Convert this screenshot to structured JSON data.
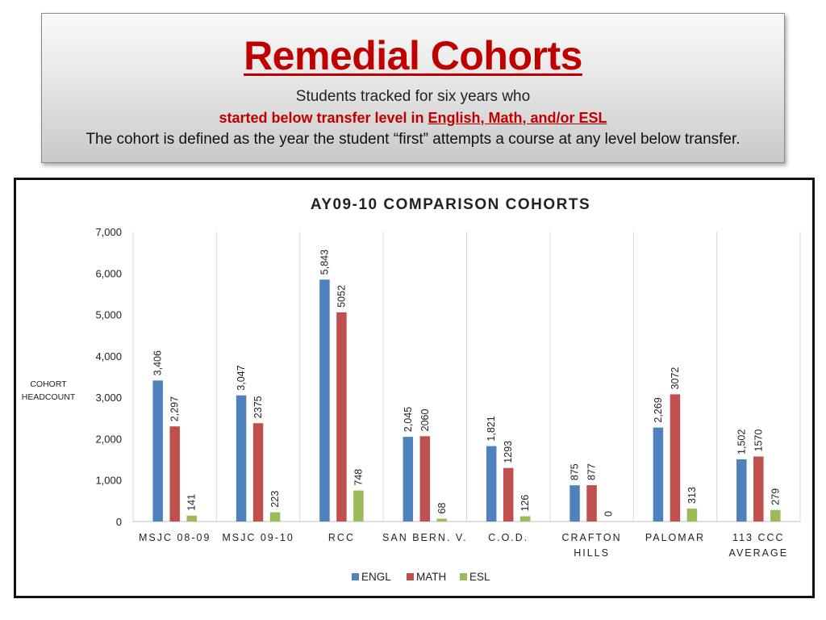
{
  "header": {
    "title": "Remedial Cohorts",
    "line1": "Students tracked for six years who",
    "line2_prefix": "started below transfer level in ",
    "line2_underlined": "English, Math, and/or ESL",
    "line3": "The cohort is defined as the year the student “first” attempts a course at any level below transfer."
  },
  "chart_data": {
    "type": "bar",
    "title": "AY09-10 COMPARISON COHORTS",
    "ylabel": "COHORT HEADCOUNT",
    "ylim": [
      0,
      7000
    ],
    "yticks": [
      "0",
      "1,000",
      "2,000",
      "3,000",
      "4,000",
      "5,000",
      "6,000",
      "7,000"
    ],
    "grid": "vertical category separators",
    "legend_position": "bottom",
    "categories": [
      [
        "MSJC 08-09"
      ],
      [
        "MSJC 09-10"
      ],
      [
        "RCC"
      ],
      [
        "SAN BERN. V."
      ],
      [
        "C.O.D."
      ],
      [
        "CRAFTON",
        "HILLS"
      ],
      [
        "PALOMAR"
      ],
      [
        "113 CCC",
        "AVERAGE"
      ]
    ],
    "series": [
      {
        "name": "ENGL",
        "color": "#4f81bd",
        "values": [
          3406,
          3047,
          5843,
          2045,
          1821,
          875,
          2269,
          1502
        ],
        "labels": [
          "3,406",
          "3,047",
          "5,843",
          "2,045",
          "1,821",
          "875",
          "2,269",
          "1,502"
        ]
      },
      {
        "name": "MATH",
        "color": "#c0504d",
        "values": [
          2297,
          2375,
          5052,
          2060,
          1293,
          877,
          3072,
          1570
        ],
        "labels": [
          "2,297",
          "2375",
          "5052",
          "2060",
          "1293",
          "877",
          "3072",
          "1570"
        ]
      },
      {
        "name": "ESL",
        "color": "#9bbb59",
        "values": [
          141,
          223,
          748,
          68,
          126,
          0,
          313,
          279
        ],
        "labels": [
          "141",
          "223",
          "748",
          "68",
          "126",
          "0",
          "313",
          "279"
        ]
      }
    ]
  }
}
